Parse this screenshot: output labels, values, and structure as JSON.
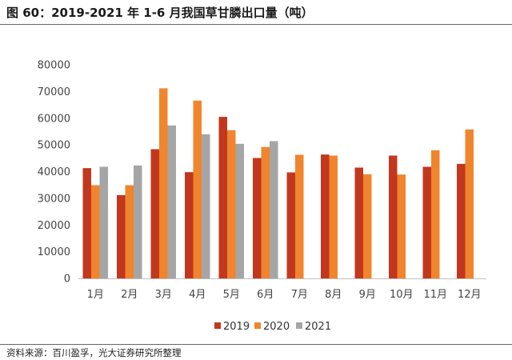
{
  "figure": {
    "title": "图 60：2019-2021 年 1-6 月我国草甘膦出口量（吨）",
    "source": "资料来源：百川盈孚，光大证券研究所整理"
  },
  "chart_data": {
    "type": "bar",
    "categories": [
      "1月",
      "2月",
      "3月",
      "4月",
      "5月",
      "6月",
      "7月",
      "8月",
      "9月",
      "10月",
      "11月",
      "12月"
    ],
    "series": [
      {
        "name": "2019",
        "color": "#C1381E",
        "values": [
          41300,
          31200,
          48400,
          39800,
          60500,
          45100,
          39700,
          46400,
          41500,
          46000,
          41800,
          42900
        ]
      },
      {
        "name": "2020",
        "color": "#F0852D",
        "values": [
          34900,
          34900,
          71200,
          66600,
          55500,
          49200,
          46300,
          46000,
          39000,
          38900,
          48000,
          55800
        ]
      },
      {
        "name": "2021",
        "color": "#A5A5A5",
        "values": [
          41800,
          42300,
          57300,
          54000,
          50400,
          51400,
          null,
          null,
          null,
          null,
          null,
          null
        ]
      }
    ],
    "yticks": [
      "0",
      "10000",
      "20000",
      "30000",
      "40000",
      "50000",
      "60000",
      "70000",
      "80000"
    ],
    "ylim": [
      0,
      80000
    ],
    "grid": false,
    "legend": "bottom-center"
  }
}
